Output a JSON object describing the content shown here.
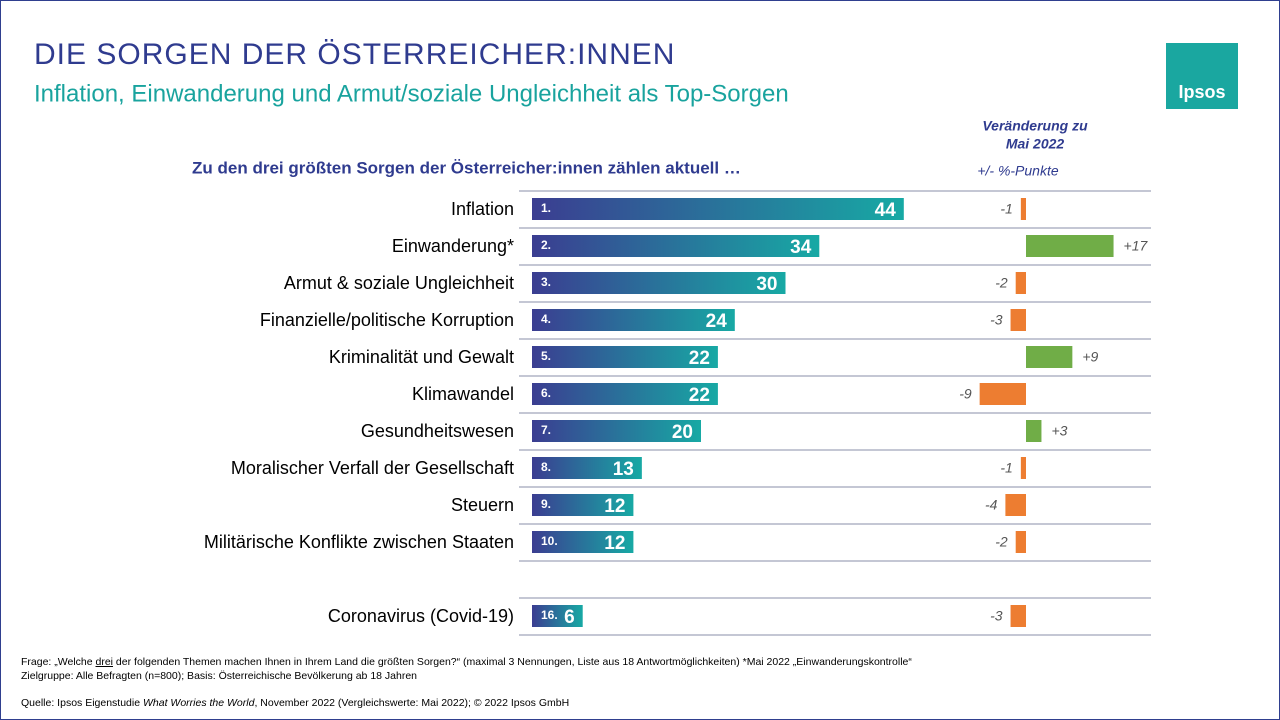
{
  "title": "DIE SORGEN DER ÖSTERREICHER:INNEN",
  "subtitle": "Inflation, Einwanderung und Armut/soziale Ungleichheit als Top-Sorgen",
  "logo": "Ipsos",
  "question_header": "Zu den drei größten Sorgen der Österreicher:innen zählen aktuell …",
  "change_header": [
    "Veränderung zu",
    "Mai 2022"
  ],
  "change_unit": "+/- %-Punkte",
  "chart_data": {
    "type": "bar",
    "orientation": "horizontal",
    "categories": [
      "Inflation",
      "Einwanderung*",
      "Armut & soziale Ungleichheit",
      "Finanzielle/politische Korruption",
      "Kriminalität und Gewalt",
      "Klimawandel",
      "Gesundheitswesen",
      "Moralischer Verfall der Gesellschaft",
      "Steuern",
      "Militärische Konflikte zwischen Staaten",
      "Coronavirus (Covid-19)"
    ],
    "ranks": [
      "1.",
      "2.",
      "3.",
      "4.",
      "5.",
      "6.",
      "7.",
      "8.",
      "9.",
      "10.",
      "16."
    ],
    "values": [
      44,
      34,
      30,
      24,
      22,
      22,
      20,
      13,
      12,
      12,
      6
    ],
    "colors": [
      "#3b3d91",
      "#17a9a4"
    ],
    "change_values": [
      -1,
      17,
      -2,
      -3,
      9,
      -9,
      3,
      -1,
      -4,
      -2,
      -3
    ],
    "change_value_labels": [
      "-1",
      "+17",
      "-2",
      "-3",
      "+9",
      "-9",
      "+3",
      "-1",
      "-4",
      "-2",
      "-3"
    ],
    "change_colors": {
      "positive": "#70ad47",
      "negative": "#ed7d31"
    }
  },
  "footnotes": {
    "question": [
      "Frage: „Welche ",
      "drei",
      " der folgenden Themen machen Ihnen in Ihrem Land die größten Sorgen?“ (maximal 3 Nennungen, Liste aus 18 Antwortmöglichkeiten) *Mai 2022 „Einwanderungskontrolle“"
    ],
    "target": "Zielgruppe: Alle Befragten (n=800); Basis: Österreichische Bevölkerung ab 18 Jahren",
    "source": [
      "Quelle: Ipsos Eigenstudie ",
      "What Worries the World",
      ", November 2022 (Vergleichswerte: Mai 2022); © 2022 Ipsos GmbH"
    ]
  }
}
